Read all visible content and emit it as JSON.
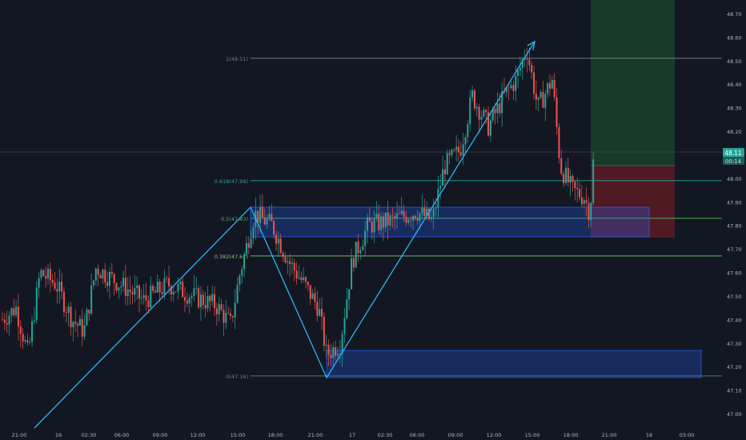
{
  "chart_data": {
    "type": "candlestick",
    "y_range": [
      46.97,
      48.77
    ],
    "y_ticks": [
      "48.70",
      "48.60",
      "48.50",
      "48.40",
      "48.30",
      "48.20",
      "48.10",
      "48.00",
      "47.90",
      "47.80",
      "47.70",
      "47.60",
      "47.50",
      "47.40",
      "47.30",
      "47.20",
      "47.10",
      "47.00"
    ],
    "x_ticks": [
      "21:00",
      "16",
      "02:30",
      "06:00",
      "09:00",
      "12:00",
      "15:00",
      "18:00",
      "21:00",
      "17",
      "02:30",
      "06:00",
      "09:00",
      "12:00",
      "15:00",
      "18:00",
      "21:00",
      "18",
      "03:00"
    ],
    "current_price": {
      "value": 48.11,
      "label": "48.11",
      "countdown": "00:14"
    },
    "fibonacci": [
      {
        "level": "1",
        "price": 48.51,
        "label": "1(48.51)",
        "color": "#787b86"
      },
      {
        "level": "0.618",
        "price": 47.99,
        "label": "0.618(47.99)",
        "color": "#26a69a"
      },
      {
        "level": "0.5",
        "price": 47.83,
        "label": "0.5(47.83)",
        "color": "#4caf50"
      },
      {
        "level": "0.382",
        "price": 47.67,
        "label": "0.382(47.67)",
        "color": "#81c784"
      },
      {
        "level": "0",
        "price": 47.16,
        "label": "0(47.16)",
        "color": "#787b86"
      }
    ],
    "zones": [
      {
        "name": "upper-demand-zone",
        "price_top": 47.88,
        "price_bottom": 47.755,
        "color": "#2962ff"
      },
      {
        "name": "lower-demand-zone",
        "price_top": 47.275,
        "price_bottom": 47.16,
        "color": "#2962ff"
      }
    ],
    "position": {
      "entry": 48.05,
      "target": 48.77,
      "stop": 47.755,
      "profit_color": "#1b5e20",
      "loss_color": "#b71c1c"
    },
    "trend_path": [
      47.01,
      47.88,
      47.16,
      48.57
    ],
    "candle_seed": [
      47.45,
      47.58,
      47.35,
      47.52,
      47.62,
      47.55,
      47.48,
      47.55,
      47.5,
      47.42,
      47.6,
      47.84,
      47.68,
      47.52,
      47.35,
      47.2,
      47.5,
      47.8,
      47.85,
      47.8,
      47.88,
      48.0,
      48.3,
      48.22,
      48.32,
      48.48,
      48.45,
      48.3,
      48.1,
      47.92,
      47.85,
      48.11
    ]
  },
  "colors": {
    "bg": "#131722",
    "up": "#26a69a",
    "down": "#ef5350",
    "grid": "#2a2e39",
    "axis_text": "#b2b5be",
    "trend": "#2196f3"
  }
}
